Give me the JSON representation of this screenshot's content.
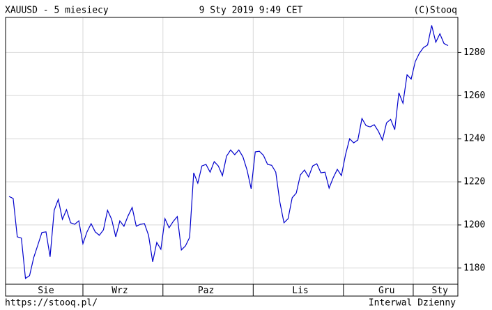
{
  "chart_data": {
    "type": "line",
    "title": "XAUUSD - 5 miesiecy",
    "subtitle": "9 Sty 2019 9:49 CET",
    "copyright": "(C)Stooq",
    "url": "https://stooq.pl/",
    "interval": "Interwal Dzienny",
    "categories": [
      null,
      null,
      null,
      null,
      null,
      null,
      null,
      null,
      null,
      "Sie",
      null,
      null,
      null,
      null,
      null,
      null,
      null,
      null,
      null,
      null,
      null,
      null,
      null,
      null,
      null,
      null,
      null,
      "Wrz",
      null,
      null,
      null,
      null,
      null,
      null,
      null,
      null,
      null,
      null,
      null,
      null,
      null,
      null,
      null,
      null,
      null,
      null,
      null,
      null,
      "Paz",
      null,
      null,
      null,
      null,
      null,
      null,
      null,
      null,
      null,
      null,
      null,
      null,
      null,
      null,
      null,
      null,
      null,
      null,
      null,
      null,
      null,
      null,
      "Lis",
      null,
      null,
      null,
      null,
      null,
      null,
      null,
      null,
      null,
      null,
      null,
      null,
      null,
      null,
      null,
      null,
      null,
      null,
      null,
      null,
      "Gru",
      null,
      null,
      null,
      null,
      null,
      null,
      null,
      null,
      null,
      null,
      null,
      null,
      "Sty",
      null,
      null
    ],
    "series": [
      {
        "name": "XAUUSD",
        "color": "#0000cc",
        "values": [
          1213.2,
          1212.3,
          1194.5,
          1193.9,
          1175.2,
          1176.5,
          1184.8,
          1190.6,
          1196.5,
          1196.8,
          1185.2,
          1206.8,
          1211.9,
          1202.6,
          1207.1,
          1201.0,
          1200.3,
          1201.9,
          1191.3,
          1196.8,
          1200.6,
          1196.8,
          1195.2,
          1197.7,
          1206.8,
          1202.6,
          1194.5,
          1201.9,
          1199.4,
          1204.2,
          1208.1,
          1199.4,
          1200.3,
          1200.6,
          1195.2,
          1182.9,
          1191.9,
          1188.7,
          1202.9,
          1198.7,
          1201.6,
          1203.9,
          1188.4,
          1190.3,
          1194.2,
          1224.2,
          1219.4,
          1227.4,
          1228.1,
          1224.5,
          1229.4,
          1227.4,
          1222.9,
          1231.9,
          1234.8,
          1232.6,
          1234.8,
          1231.6,
          1225.5,
          1216.8,
          1233.9,
          1234.2,
          1232.3,
          1228.1,
          1227.7,
          1224.5,
          1210.6,
          1201.0,
          1202.9,
          1212.6,
          1214.8,
          1223.2,
          1225.5,
          1222.3,
          1227.4,
          1228.4,
          1224.2,
          1224.5,
          1217.1,
          1221.9,
          1225.8,
          1222.9,
          1232.6,
          1240.0,
          1238.1,
          1239.4,
          1249.4,
          1246.1,
          1245.5,
          1246.5,
          1243.5,
          1239.4,
          1247.4,
          1249.0,
          1244.2,
          1261.3,
          1256.5,
          1269.7,
          1267.7,
          1275.8,
          1279.7,
          1282.3,
          1283.5,
          1292.6,
          1284.8,
          1288.7,
          1284.2,
          1283.2
        ]
      }
    ],
    "ylim": [
      1172.5,
      1296.3
    ],
    "yticks": [
      1180,
      1200,
      1220,
      1240,
      1260,
      1280
    ],
    "grid": true
  }
}
